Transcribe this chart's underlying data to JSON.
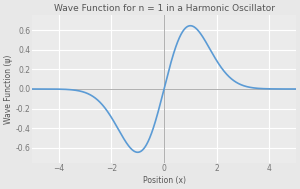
{
  "title": "Wave Function for n = 1 in a Harmonic Oscillator",
  "xlabel": "Position (x)",
  "ylabel": "Wave Function (ψ)",
  "xlim": [
    -5,
    5
  ],
  "ylim": [
    -0.75,
    0.75
  ],
  "xticks": [
    -4,
    -2,
    0,
    2,
    4
  ],
  "yticks": [
    -0.6,
    -0.4,
    -0.2,
    0.0,
    0.2,
    0.4,
    0.6
  ],
  "line_color": "#5b9bd5",
  "line_width": 1.2,
  "background_color": "#e8e8e8",
  "plot_bg_color": "#ebebeb",
  "grid_color": "#ffffff",
  "axline_color": "#b0b0b0",
  "title_fontsize": 6.5,
  "label_fontsize": 5.5,
  "tick_fontsize": 5.5,
  "title_color": "#555555",
  "label_color": "#555555",
  "tick_color": "#777777"
}
